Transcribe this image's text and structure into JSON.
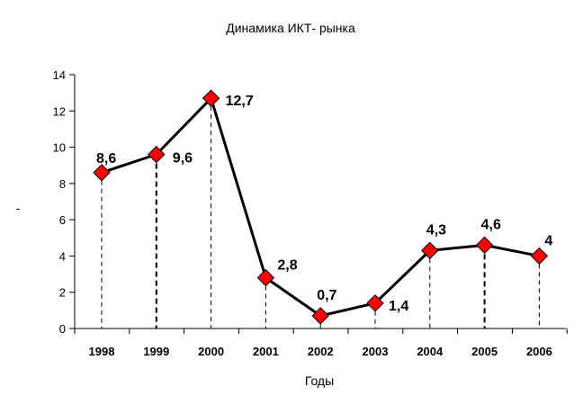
{
  "chart_data": {
    "type": "line",
    "title": "Динамика ИКТ- рынка",
    "xlabel": "Годы",
    "ylabel": "-",
    "categories": [
      "1998",
      "1999",
      "2000",
      "2001",
      "2002",
      "2003",
      "2004",
      "2005",
      "2006"
    ],
    "series": [
      {
        "values": [
          8.6,
          9.6,
          12.7,
          2.8,
          0.7,
          1.4,
          4.3,
          4.6,
          4.0
        ],
        "data_labels": [
          "8,6",
          "9,6",
          "12,7",
          "2,8",
          "0,7",
          "1,4",
          "4,3",
          "4,6",
          "4"
        ],
        "color": "#000000",
        "marker": "diamond",
        "marker_color": "#ff0000"
      }
    ],
    "ylim": [
      0,
      14
    ],
    "yticks": [
      "0",
      "2",
      "4",
      "6",
      "8",
      "10",
      "12",
      "14"
    ],
    "grid": false,
    "drop_lines": true,
    "legend": "none"
  }
}
